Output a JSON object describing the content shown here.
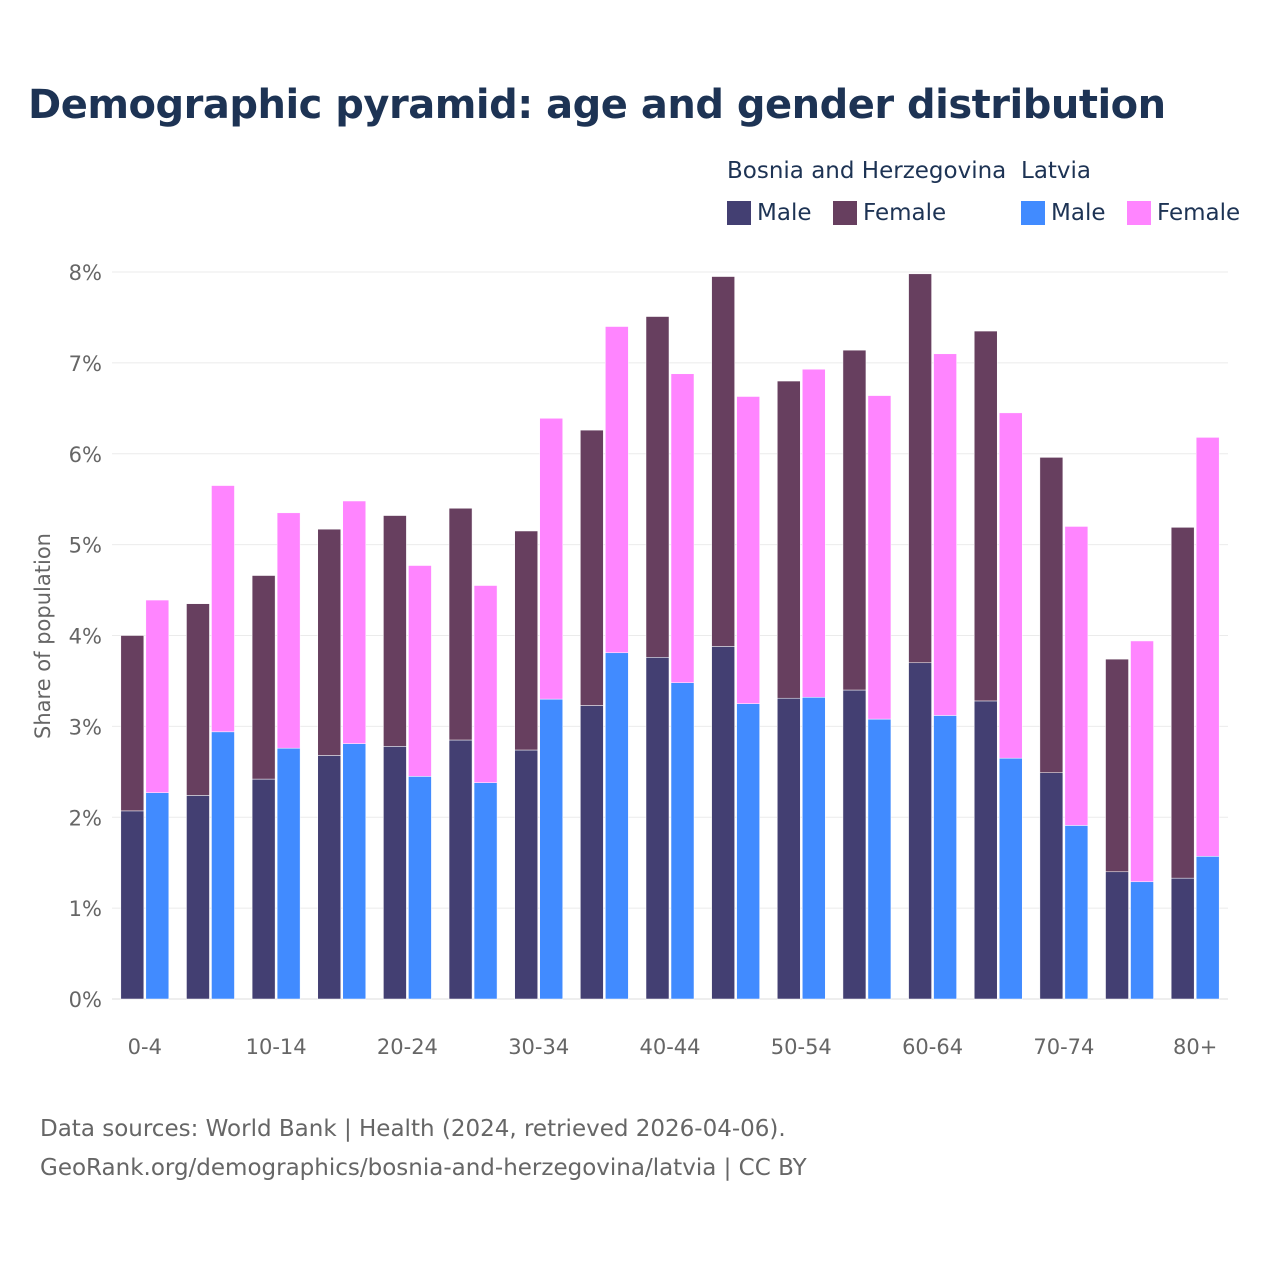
{
  "title": "Demographic pyramid: age and gender distribution",
  "legend": {
    "groups": [
      {
        "name": "Bosnia and Herzegovina",
        "items": [
          {
            "label": "Male",
            "color": "#433f72"
          },
          {
            "label": "Female",
            "color": "#673f5f"
          }
        ]
      },
      {
        "name": "Latvia",
        "items": [
          {
            "label": "Male",
            "color": "#418bff"
          },
          {
            "label": "Female",
            "color": "#ff85ff"
          }
        ]
      }
    ]
  },
  "footer": {
    "line1": "Data sources: World Bank | Health (2024, retrieved 2026-04-06).",
    "line2": "GeoRank.org/demographics/bosnia-and-herzegovina/latvia | CC BY"
  },
  "chart_data": {
    "type": "bar",
    "stacked": true,
    "title": "Demographic pyramid: age and gender distribution",
    "ylabel": "Share of population",
    "xlabel": "",
    "ylim": [
      0,
      8
    ],
    "y_ticks": [
      "0%",
      "1%",
      "2%",
      "3%",
      "4%",
      "5%",
      "6%",
      "7%",
      "8%"
    ],
    "grid": true,
    "legend_position": "top-right",
    "categories": [
      "0-4",
      "5-9",
      "10-14",
      "15-19",
      "20-24",
      "25-29",
      "30-34",
      "35-39",
      "40-44",
      "45-49",
      "50-54",
      "55-59",
      "60-64",
      "65-69",
      "70-74",
      "75-79",
      "80+"
    ],
    "x_tick_labels": [
      "0-4",
      "10-14",
      "20-24",
      "30-34",
      "40-44",
      "50-54",
      "60-64",
      "70-74",
      "80+"
    ],
    "series": [
      {
        "country": "Bosnia and Herzegovina",
        "name": "Male",
        "stack": "Bosnia and Herzegovina",
        "color": "#433f72",
        "values": [
          2.07,
          2.24,
          2.42,
          2.68,
          2.78,
          2.85,
          2.74,
          3.23,
          3.76,
          3.88,
          3.31,
          3.4,
          3.7,
          3.28,
          2.49,
          1.4,
          1.33
        ]
      },
      {
        "country": "Bosnia and Herzegovina",
        "name": "Female",
        "stack": "Bosnia and Herzegovina",
        "color": "#673f5f",
        "values": [
          1.93,
          2.11,
          2.24,
          2.49,
          2.54,
          2.55,
          2.41,
          3.03,
          3.75,
          4.07,
          3.49,
          3.74,
          4.28,
          4.07,
          3.47,
          2.34,
          3.86
        ]
      },
      {
        "country": "Latvia",
        "name": "Male",
        "stack": "Latvia",
        "color": "#418bff",
        "values": [
          2.27,
          2.94,
          2.76,
          2.81,
          2.45,
          2.38,
          3.3,
          3.81,
          3.48,
          3.25,
          3.32,
          3.08,
          3.12,
          2.65,
          1.91,
          1.29,
          1.57
        ]
      },
      {
        "country": "Latvia",
        "name": "Female",
        "stack": "Latvia",
        "color": "#ff85ff",
        "values": [
          2.12,
          2.71,
          2.59,
          2.67,
          2.32,
          2.17,
          3.09,
          3.59,
          3.4,
          3.38,
          3.61,
          3.56,
          3.98,
          3.8,
          3.29,
          2.65,
          4.61
        ]
      }
    ]
  }
}
